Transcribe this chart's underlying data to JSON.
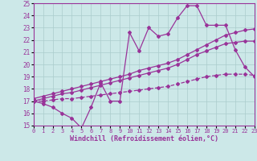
{
  "xlabel": "Windchill (Refroidissement éolien,°C)",
  "ylabel": "",
  "xlim": [
    0,
    23
  ],
  "ylim": [
    15,
    25
  ],
  "yticks": [
    15,
    16,
    17,
    18,
    19,
    20,
    21,
    22,
    23,
    24,
    25
  ],
  "xticks": [
    0,
    1,
    2,
    3,
    4,
    5,
    6,
    7,
    8,
    9,
    10,
    11,
    12,
    13,
    14,
    15,
    16,
    17,
    18,
    19,
    20,
    21,
    22,
    23
  ],
  "bg_color": "#cce8e8",
  "grid_color": "#aacccc",
  "line_color": "#993399",
  "main_y": [
    17.0,
    16.8,
    16.5,
    16.0,
    15.6,
    14.8,
    16.5,
    18.5,
    17.0,
    17.0,
    22.6,
    21.1,
    23.0,
    22.3,
    22.5,
    23.8,
    24.8,
    24.8,
    23.2,
    23.2,
    23.2,
    21.2,
    19.8,
    19.0
  ],
  "upper_y": [
    17.2,
    17.4,
    17.6,
    17.8,
    18.0,
    18.2,
    18.4,
    18.6,
    18.8,
    19.0,
    19.2,
    19.5,
    19.7,
    19.9,
    20.1,
    20.4,
    20.8,
    21.2,
    21.6,
    22.0,
    22.4,
    22.6,
    22.8,
    22.9
  ],
  "mid_y": [
    17.0,
    17.2,
    17.4,
    17.6,
    17.7,
    17.9,
    18.1,
    18.3,
    18.5,
    18.7,
    18.9,
    19.1,
    19.3,
    19.5,
    19.7,
    20.0,
    20.4,
    20.8,
    21.1,
    21.4,
    21.7,
    21.8,
    21.9,
    21.9
  ],
  "lower_y": [
    17.0,
    17.0,
    17.1,
    17.2,
    17.2,
    17.3,
    17.4,
    17.5,
    17.6,
    17.7,
    17.8,
    17.9,
    18.0,
    18.1,
    18.2,
    18.4,
    18.6,
    18.8,
    19.0,
    19.1,
    19.2,
    19.2,
    19.2,
    19.1
  ],
  "lw_main": 0.9,
  "lw_band": 0.9,
  "marker_size": 2.0,
  "tick_fontsize": 5.5,
  "xlabel_fontsize": 6.0
}
